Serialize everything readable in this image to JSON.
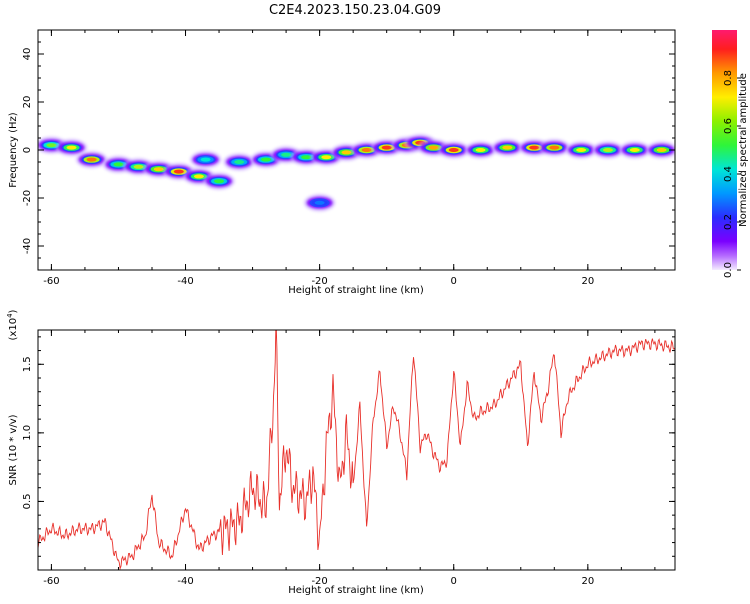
{
  "title": "C2E4.2023.150.23.04.G09",
  "colors": {
    "snr_line": "#e8302a",
    "axis": "#000000",
    "plot_bg": "#ffffff",
    "spectrogram_low": "#7a00ff",
    "spectrogram_high": "#ff0000"
  },
  "chart_data": [
    {
      "type": "heatmap",
      "title": "C2E4.2023.150.23.04.G09",
      "xlabel": "Height of straight line (km)",
      "ylabel": "Frequency (Hz)",
      "xlim": [
        -62,
        33
      ],
      "ylim": [
        -50,
        50
      ],
      "x_ticks": [
        -60,
        -40,
        -20,
        0,
        20
      ],
      "y_ticks": [
        -40,
        -20,
        0,
        20,
        40
      ],
      "grid": false,
      "colorbar": {
        "label": "Normalized spectral amplitude",
        "range": [
          0,
          1
        ],
        "ticks": [
          "0.0",
          "0.2",
          "0.4",
          "0.6",
          "0.8"
        ],
        "colormap": "rainbow (purple-blue-cyan-green-yellow-red-magenta)"
      },
      "ridge_points": [
        {
          "x": -60,
          "y": 2,
          "amp": 0.6
        },
        {
          "x": -57,
          "y": 1,
          "amp": 0.7
        },
        {
          "x": -54,
          "y": -4,
          "amp": 0.85
        },
        {
          "x": -50,
          "y": -6,
          "amp": 0.55
        },
        {
          "x": -47,
          "y": -7,
          "amp": 0.65
        },
        {
          "x": -44,
          "y": -8,
          "amp": 0.75
        },
        {
          "x": -41,
          "y": -9,
          "amp": 0.9
        },
        {
          "x": -38,
          "y": -11,
          "amp": 0.7
        },
        {
          "x": -35,
          "y": -13,
          "amp": 0.55
        },
        {
          "x": -37,
          "y": -4,
          "amp": 0.45
        },
        {
          "x": -32,
          "y": -5,
          "amp": 0.5
        },
        {
          "x": -28,
          "y": -4,
          "amp": 0.55
        },
        {
          "x": -25,
          "y": -2,
          "amp": 0.5
        },
        {
          "x": -22,
          "y": -3,
          "amp": 0.55
        },
        {
          "x": -19,
          "y": -3,
          "amp": 0.7
        },
        {
          "x": -16,
          "y": -1,
          "amp": 0.75
        },
        {
          "x": -13,
          "y": 0,
          "amp": 0.85
        },
        {
          "x": -10,
          "y": 1,
          "amp": 0.9
        },
        {
          "x": -7,
          "y": 2,
          "amp": 0.85
        },
        {
          "x": -5,
          "y": 3,
          "amp": 0.9
        },
        {
          "x": -3,
          "y": 1,
          "amp": 0.8
        },
        {
          "x": 0,
          "y": 0,
          "amp": 0.9
        },
        {
          "x": 4,
          "y": 0,
          "amp": 0.7
        },
        {
          "x": 8,
          "y": 1,
          "amp": 0.75
        },
        {
          "x": 12,
          "y": 1,
          "amp": 0.9
        },
        {
          "x": 15,
          "y": 1,
          "amp": 0.85
        },
        {
          "x": 19,
          "y": 0,
          "amp": 0.7
        },
        {
          "x": 23,
          "y": 0,
          "amp": 0.65
        },
        {
          "x": 27,
          "y": 0,
          "amp": 0.7
        },
        {
          "x": 31,
          "y": 0,
          "amp": 0.75
        },
        {
          "x": -20,
          "y": -22,
          "amp": 0.3
        }
      ]
    },
    {
      "type": "line",
      "xlabel": "Height of straight line (km)",
      "ylabel": "SNR (10 * v/v)",
      "y_multiplier_label": "(x10",
      "y_multiplier_exp": "4",
      "xlim": [
        -62,
        33
      ],
      "ylim": [
        0,
        1.75
      ],
      "x_ticks": [
        -60,
        -40,
        -20,
        0,
        20
      ],
      "y_ticks": [
        "0.5",
        "1.0",
        "1.5"
      ],
      "y_tick_values": [
        0.5,
        1.0,
        1.5
      ],
      "grid": false,
      "series": [
        {
          "x": [
            -62,
            -60,
            -58,
            -56,
            -54,
            -52,
            -50,
            -48,
            -46,
            -45,
            -44,
            -42,
            -40,
            -38,
            -36,
            -34,
            -32,
            -30,
            -28,
            -27,
            -26.5,
            -26,
            -25,
            -24,
            -22,
            -21,
            -20,
            -19,
            -18,
            -17,
            -16,
            -15,
            -14,
            -13,
            -12,
            -11,
            -10,
            -9,
            -8,
            -7,
            -6,
            -5,
            -4,
            -3,
            -2,
            -1,
            0,
            1,
            2,
            3,
            4,
            6,
            8,
            10,
            11,
            12,
            13,
            14,
            15,
            16,
            17,
            18,
            20,
            22,
            24,
            26,
            28,
            30,
            33
          ],
          "y": [
            0.2,
            0.3,
            0.25,
            0.3,
            0.3,
            0.35,
            0.05,
            0.1,
            0.25,
            0.55,
            0.2,
            0.1,
            0.45,
            0.15,
            0.25,
            0.3,
            0.35,
            0.6,
            0.45,
            1.1,
            1.75,
            0.5,
            0.9,
            0.6,
            0.5,
            0.7,
            0.2,
            0.9,
            1.3,
            0.6,
            1.0,
            0.6,
            1.2,
            0.3,
            1.1,
            1.45,
            0.9,
            1.2,
            1.0,
            0.7,
            1.6,
            0.9,
            1.0,
            0.85,
            0.75,
            0.8,
            1.45,
            0.9,
            1.35,
            1.1,
            1.15,
            1.2,
            1.35,
            1.5,
            0.9,
            1.45,
            1.1,
            1.3,
            1.6,
            1.0,
            1.25,
            1.35,
            1.5,
            1.55,
            1.6,
            1.6,
            1.65,
            1.65,
            1.62
          ]
        }
      ]
    }
  ]
}
